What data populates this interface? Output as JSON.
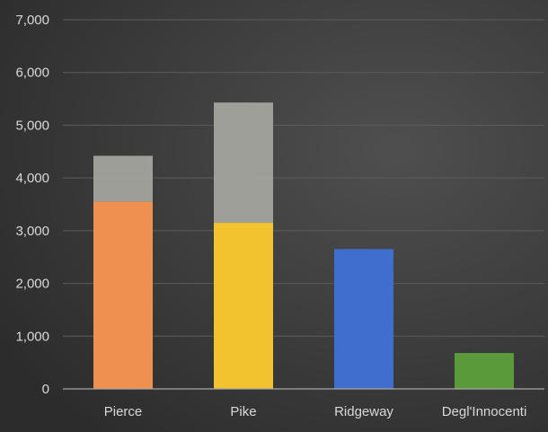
{
  "chart_data": {
    "type": "bar",
    "categories": [
      "Pierce",
      "Pike",
      "Ridgeway",
      "Degl'Innocenti"
    ],
    "series": [
      {
        "values": [
          3550,
          3150,
          2650,
          680
        ],
        "colors": [
          "#ef8f50",
          "#f2c22f",
          "#3e6fcf",
          "#5a9a3a"
        ]
      },
      {
        "values": [
          870,
          2280,
          0,
          0
        ],
        "color": "#a7a7a2"
      }
    ],
    "stacked": true,
    "ylim": [
      0,
      7000
    ],
    "yticks": [
      0,
      1000,
      2000,
      3000,
      4000,
      5000,
      6000,
      7000
    ],
    "ytick_labels": [
      "0",
      "1,000",
      "2,000",
      "3,000",
      "4,000",
      "5,000",
      "6,000",
      "7,000"
    ],
    "grid": true,
    "legend": "none",
    "title": "",
    "xlabel": "",
    "ylabel": "",
    "background": "#3a3a3a",
    "gridline_color": "#5c5c5c",
    "text_color": "#d9d9d9"
  }
}
